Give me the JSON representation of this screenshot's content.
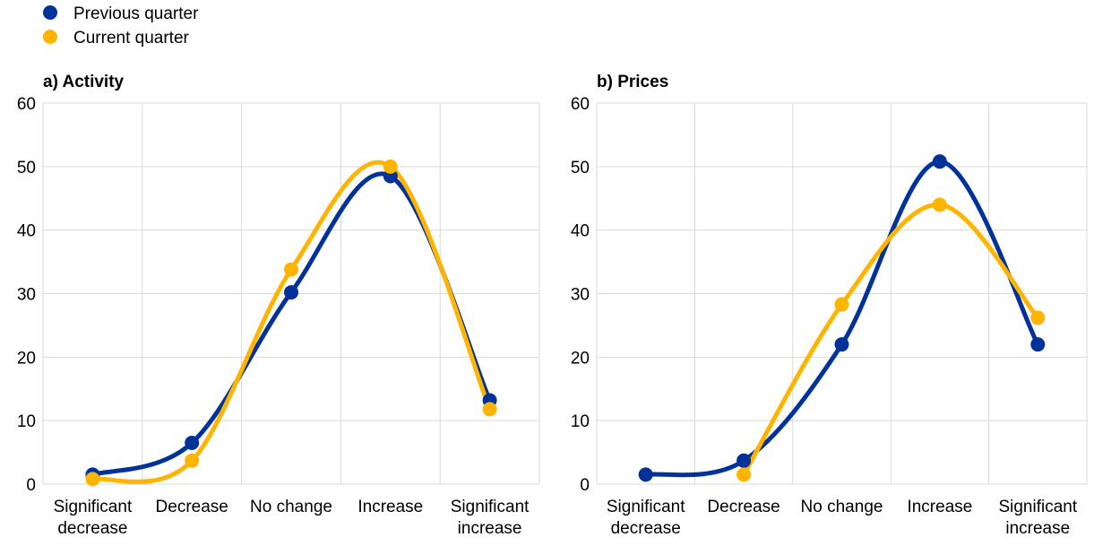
{
  "legend": [
    {
      "label": "Previous quarter",
      "color": "#003299"
    },
    {
      "label": "Current quarter",
      "color": "#FFB400"
    }
  ],
  "chart_data": [
    {
      "type": "line",
      "title": "a) Activity",
      "categories": [
        [
          "Significant",
          "decrease"
        ],
        [
          "Decrease"
        ],
        [
          "No change"
        ],
        [
          "Increase"
        ],
        [
          "Significant",
          "increase"
        ]
      ],
      "ylim": [
        0,
        60
      ],
      "yticks": [
        0,
        10,
        20,
        30,
        40,
        50,
        60
      ],
      "grid": true,
      "series": [
        {
          "name": "Previous quarter",
          "color": "#003299",
          "values": [
            1.5,
            6.5,
            30.2,
            48.5,
            13.2
          ]
        },
        {
          "name": "Current quarter",
          "color": "#FFB400",
          "values": [
            0.8,
            3.7,
            33.8,
            50.0,
            11.8
          ]
        }
      ]
    },
    {
      "type": "line",
      "title": "b) Prices",
      "categories": [
        [
          "Significant",
          "decrease"
        ],
        [
          "Decrease"
        ],
        [
          "No change"
        ],
        [
          "Increase"
        ],
        [
          "Significant",
          "increase"
        ]
      ],
      "ylim": [
        0,
        60
      ],
      "yticks": [
        0,
        10,
        20,
        30,
        40,
        50,
        60
      ],
      "grid": true,
      "series": [
        {
          "name": "Previous quarter",
          "color": "#003299",
          "values": [
            1.5,
            3.7,
            22.0,
            50.8,
            22.0
          ]
        },
        {
          "name": "Current quarter",
          "color": "#FFB400",
          "values": [
            null,
            1.5,
            28.3,
            44.0,
            26.2
          ]
        }
      ]
    }
  ]
}
